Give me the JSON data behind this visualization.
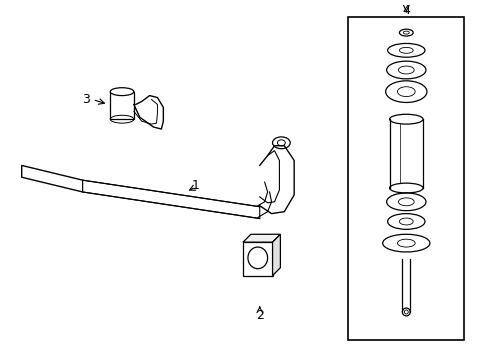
{
  "bg_color": "#ffffff",
  "line_color": "#000000",
  "fig_width": 4.89,
  "fig_height": 3.6,
  "dpi": 100
}
